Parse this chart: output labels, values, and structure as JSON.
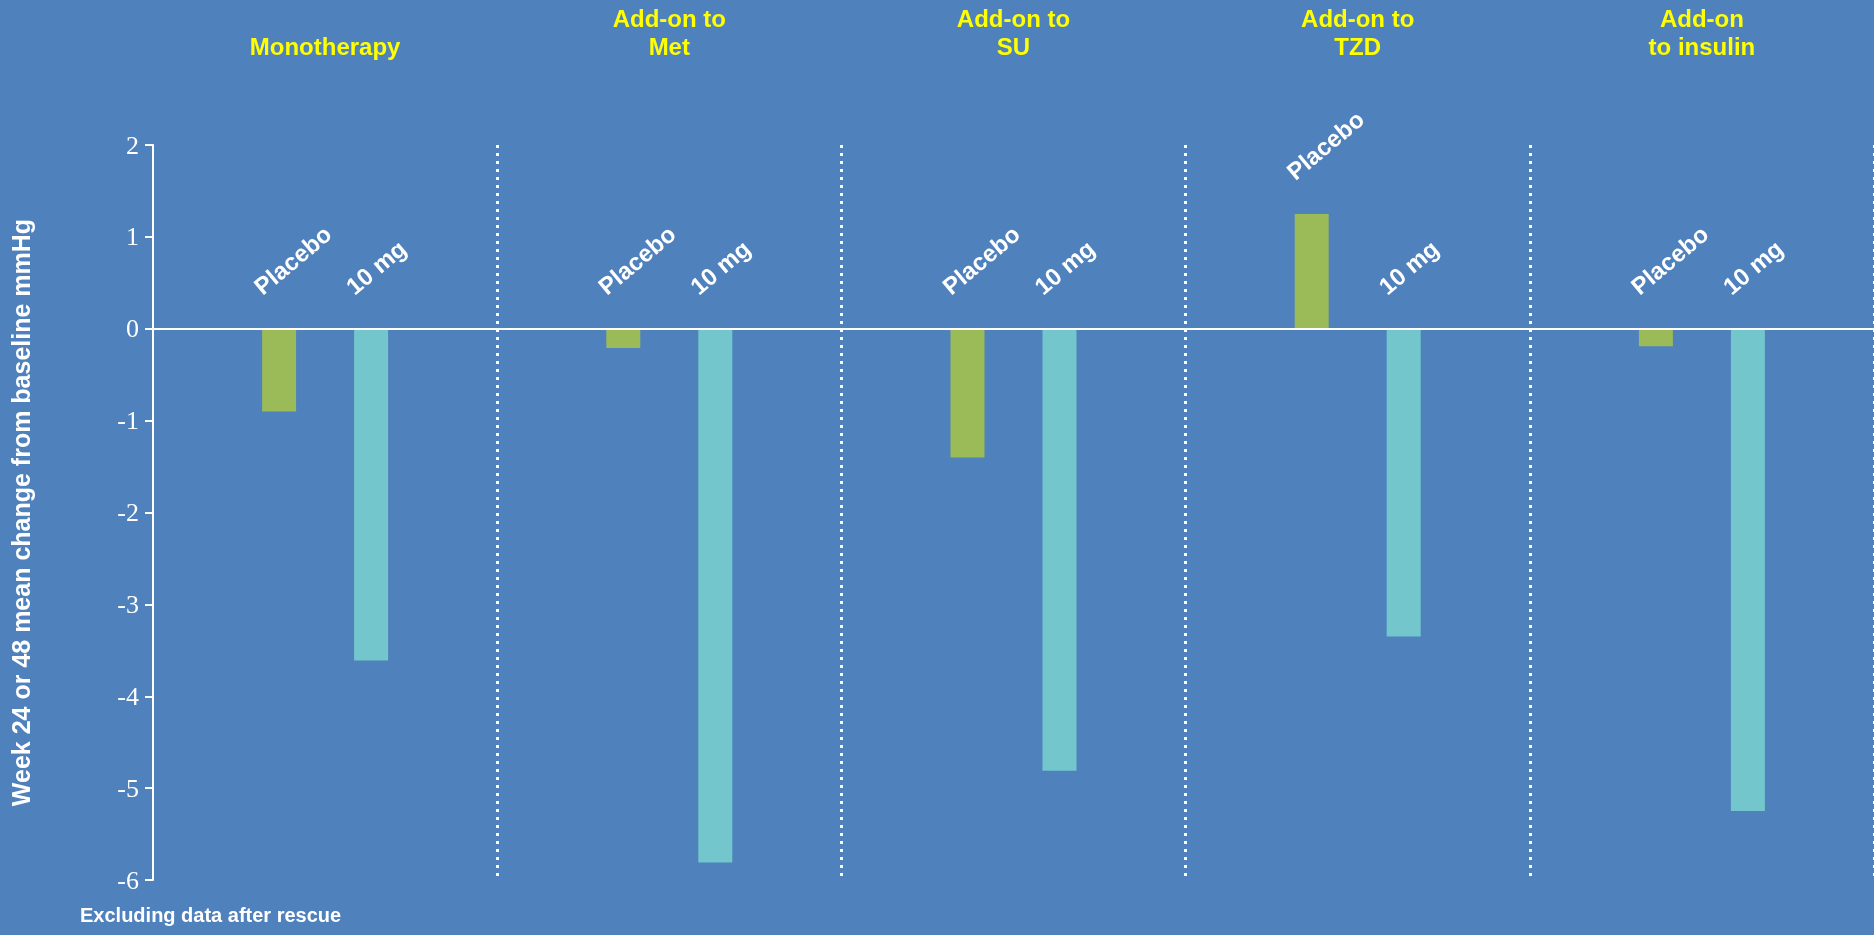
{
  "chart_data": {
    "type": "bar",
    "ylabel": "Week 24 or 48 mean change from baseline mmHg",
    "categories": [
      "Monotherapy",
      "Add-on to\nMet",
      "Add-on to\nSU",
      "Add-on to\nTZD",
      "Add-on\nto insulin"
    ],
    "series": [
      {
        "name": "Placebo",
        "color": "#9bbb59",
        "values": [
          -0.9,
          -0.21,
          -1.4,
          1.25,
          -0.19
        ]
      },
      {
        "name": "10 mg",
        "color": "#72c6cc",
        "values": [
          -3.61,
          -5.81,
          -4.81,
          -3.35,
          -5.25
        ]
      }
    ],
    "ylim": [
      -6,
      2
    ],
    "yticks": [
      -6,
      -5,
      -4,
      -3,
      -2,
      -1,
      0,
      1,
      2
    ],
    "grid": "x",
    "legend": false,
    "ref_lines": [
      {
        "axis": "y",
        "value": 0,
        "color": "#ffffff",
        "line_style": "solid"
      }
    ],
    "annotations": [
      "Excluding data after rescue"
    ]
  }
}
